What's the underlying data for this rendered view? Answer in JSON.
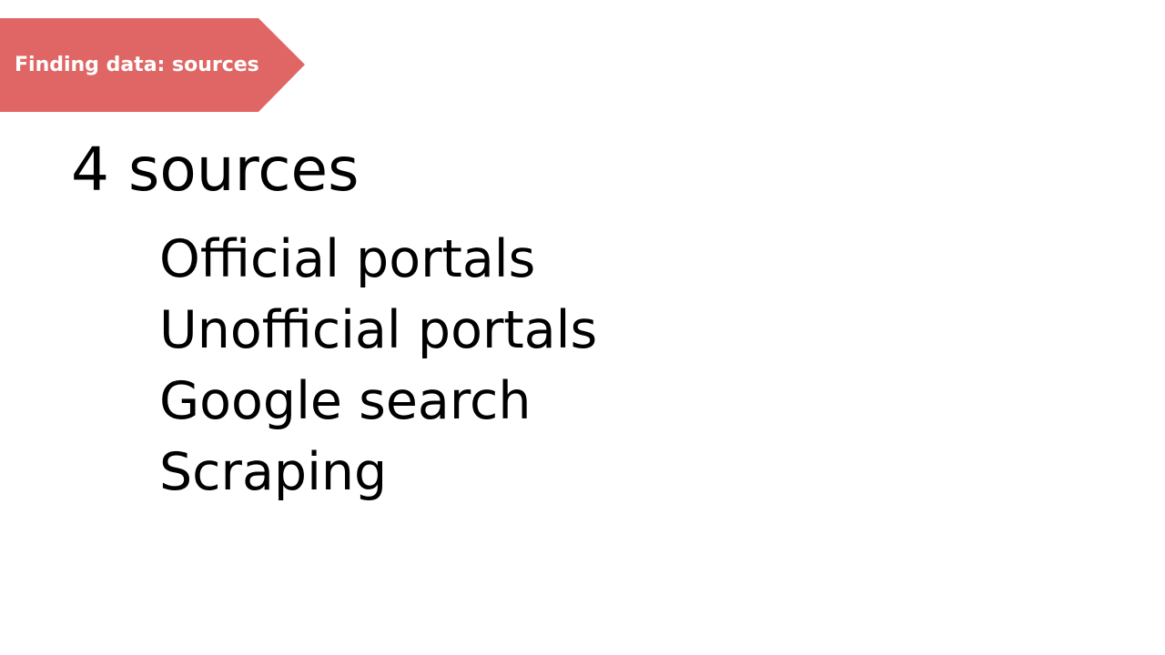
{
  "section_tag": {
    "label": "Finding data: sources",
    "color": "#e06666",
    "text_color": "#ffffff"
  },
  "title": "4 sources",
  "bullets": [
    "Official portals",
    "Unofficial portals",
    "Google search",
    "Scraping"
  ]
}
